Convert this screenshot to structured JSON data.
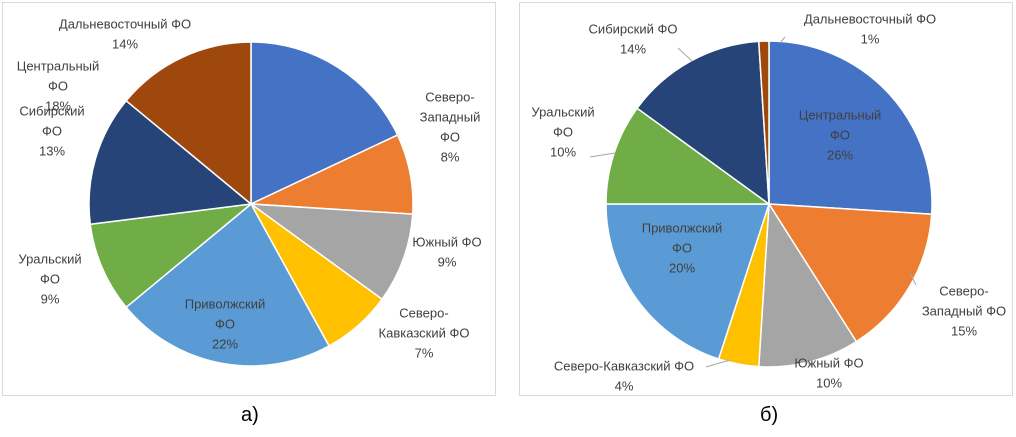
{
  "captions": {
    "a": "а)",
    "b": "б)"
  },
  "colors": {
    "central": "#4472C4",
    "northwest": "#ED7D31",
    "south": "#A5A5A5",
    "ncaucasus": "#FFC000",
    "volga": "#5B9BD5",
    "ural": "#70AD47",
    "siberia": "#264478",
    "fareast": "#9E480E"
  },
  "chart_data": [
    {
      "type": "pie",
      "title": "",
      "slices": [
        {
          "key": "central",
          "lines": [
            "Центральный",
            "ФО"
          ],
          "pct": "18%",
          "value": 18,
          "color": "#4472C4",
          "inside": true
        },
        {
          "key": "northwest",
          "lines": [
            "Северо-",
            "Западный",
            "ФО"
          ],
          "pct": "8%",
          "value": 8,
          "color": "#ED7D31",
          "inside": false
        },
        {
          "key": "south",
          "lines": [
            "Южный ФО"
          ],
          "pct": "9%",
          "value": 9,
          "color": "#A5A5A5",
          "inside": false
        },
        {
          "key": "ncaucasus",
          "lines": [
            "Северо-",
            "Кавказский ФО"
          ],
          "pct": "7%",
          "value": 7,
          "color": "#FFC000",
          "inside": false
        },
        {
          "key": "volga",
          "lines": [
            "Приволжский",
            "ФО"
          ],
          "pct": "22%",
          "value": 22,
          "color": "#5B9BD5",
          "inside": true
        },
        {
          "key": "ural",
          "lines": [
            "Уральский",
            "ФО"
          ],
          "pct": "9%",
          "value": 9,
          "color": "#70AD47",
          "inside": false
        },
        {
          "key": "siberia",
          "lines": [
            "Сибирский",
            "ФО"
          ],
          "pct": "13%",
          "value": 13,
          "color": "#264478",
          "inside": false
        },
        {
          "key": "fareast",
          "lines": [
            "Дальневосточный ФО"
          ],
          "pct": "14%",
          "value": 14,
          "color": "#9E480E",
          "inside": false
        }
      ]
    },
    {
      "type": "pie",
      "title": "",
      "slices": [
        {
          "key": "central",
          "lines": [
            "Центральный",
            "ФО"
          ],
          "pct": "26%",
          "value": 26,
          "color": "#4472C4",
          "inside": true
        },
        {
          "key": "northwest",
          "lines": [
            "Северо-",
            "Западный ФО"
          ],
          "pct": "15%",
          "value": 15,
          "color": "#ED7D31",
          "inside": false
        },
        {
          "key": "south",
          "lines": [
            "Южный ФО"
          ],
          "pct": "10%",
          "value": 10,
          "color": "#A5A5A5",
          "inside": false
        },
        {
          "key": "ncaucasus",
          "lines": [
            "Северо-Кавказский ФО"
          ],
          "pct": "4%",
          "value": 4,
          "color": "#FFC000",
          "inside": false
        },
        {
          "key": "volga",
          "lines": [
            "Приволжский",
            "ФО"
          ],
          "pct": "20%",
          "value": 20,
          "color": "#5B9BD5",
          "inside": true
        },
        {
          "key": "ural",
          "lines": [
            "Уральский",
            "ФО"
          ],
          "pct": "10%",
          "value": 10,
          "color": "#70AD47",
          "inside": false
        },
        {
          "key": "siberia",
          "lines": [
            "Сибирский ФО"
          ],
          "pct": "14%",
          "value": 14,
          "color": "#264478",
          "inside": false
        },
        {
          "key": "fareast",
          "lines": [
            "Дальневосточный ФО"
          ],
          "pct": "1%",
          "value": 1,
          "color": "#9E480E",
          "inside": false
        }
      ]
    }
  ]
}
